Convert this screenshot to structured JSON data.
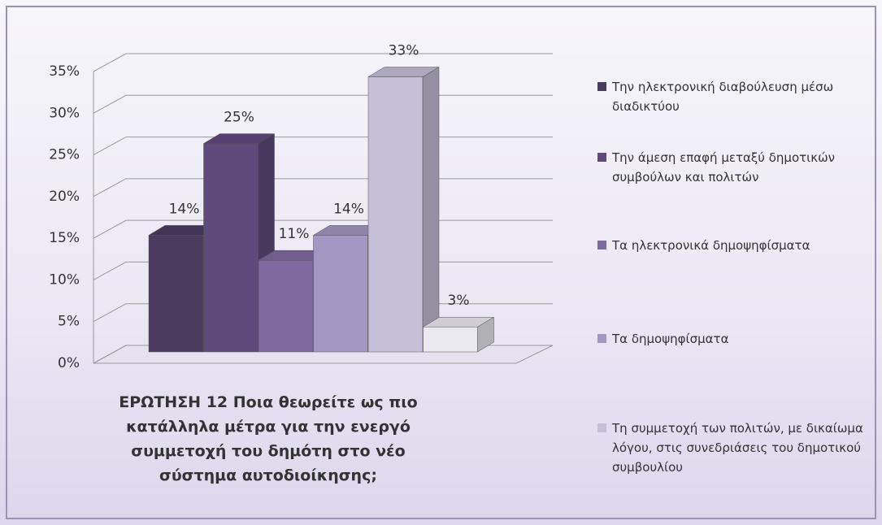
{
  "chart_data": {
    "type": "bar3d",
    "title": "ΕΡΩΤΗΣΗ 12   Ποια θεωρείτε ως πιο κατάλληλα μέτρα για την ενεργό συμμετοχή του δημότη στο νέο σύστημα αυτοδιοίκησης;",
    "categories": [
      "Την ηλεκτρονική διαβούλευση μέσω διαδικτύου",
      "Την άμεση επαφή μεταξύ δημοτικών συμβούλων και πολιτών",
      "Τα ηλεκτρονικά δημοψηφίσματα",
      "Τα δημοψηφίσματα",
      "Τη συμμετοχή των πολιτών, με δικαίωμα λόγου, στις συνεδριάσεις του δημοτικού συμβουλίου",
      null
    ],
    "values": [
      14,
      25,
      11,
      14,
      33,
      3
    ],
    "value_labels": [
      "14%",
      "25%",
      "11%",
      "14%",
      "33%",
      "3%"
    ],
    "colors": [
      "#4b3b5f",
      "#5f4a7c",
      "#7e6a9e",
      "#a496c2",
      "#c6bfd8",
      "#eceaf1"
    ],
    "ylim": [
      0,
      35
    ],
    "yticks": [
      {
        "value": 0,
        "label": "0%"
      },
      {
        "value": 5,
        "label": "5%"
      },
      {
        "value": 10,
        "label": "10%"
      },
      {
        "value": 15,
        "label": "15%"
      },
      {
        "value": 20,
        "label": "20%"
      },
      {
        "value": 25,
        "label": "25%"
      },
      {
        "value": 30,
        "label": "30%"
      },
      {
        "value": 35,
        "label": "35%"
      }
    ],
    "grid": true
  }
}
